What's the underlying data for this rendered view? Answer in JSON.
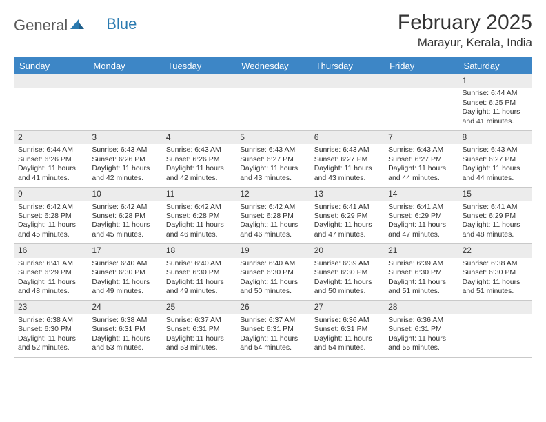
{
  "logo": {
    "word1": "General",
    "word2": "Blue"
  },
  "title": "February 2025",
  "location": "Marayur, Kerala, India",
  "colors": {
    "header_bg": "#3d86c6",
    "header_text": "#ffffff",
    "daynum_bg": "#ececec",
    "border": "#c9c9c9",
    "text": "#333333",
    "logo_gray": "#5a5a5a",
    "logo_blue": "#2a7ab0"
  },
  "day_names": [
    "Sunday",
    "Monday",
    "Tuesday",
    "Wednesday",
    "Thursday",
    "Friday",
    "Saturday"
  ],
  "weeks": [
    [
      {
        "n": "",
        "lines": []
      },
      {
        "n": "",
        "lines": []
      },
      {
        "n": "",
        "lines": []
      },
      {
        "n": "",
        "lines": []
      },
      {
        "n": "",
        "lines": []
      },
      {
        "n": "",
        "lines": []
      },
      {
        "n": "1",
        "lines": [
          "Sunrise: 6:44 AM",
          "Sunset: 6:25 PM",
          "Daylight: 11 hours and 41 minutes."
        ]
      }
    ],
    [
      {
        "n": "2",
        "lines": [
          "Sunrise: 6:44 AM",
          "Sunset: 6:26 PM",
          "Daylight: 11 hours and 41 minutes."
        ]
      },
      {
        "n": "3",
        "lines": [
          "Sunrise: 6:43 AM",
          "Sunset: 6:26 PM",
          "Daylight: 11 hours and 42 minutes."
        ]
      },
      {
        "n": "4",
        "lines": [
          "Sunrise: 6:43 AM",
          "Sunset: 6:26 PM",
          "Daylight: 11 hours and 42 minutes."
        ]
      },
      {
        "n": "5",
        "lines": [
          "Sunrise: 6:43 AM",
          "Sunset: 6:27 PM",
          "Daylight: 11 hours and 43 minutes."
        ]
      },
      {
        "n": "6",
        "lines": [
          "Sunrise: 6:43 AM",
          "Sunset: 6:27 PM",
          "Daylight: 11 hours and 43 minutes."
        ]
      },
      {
        "n": "7",
        "lines": [
          "Sunrise: 6:43 AM",
          "Sunset: 6:27 PM",
          "Daylight: 11 hours and 44 minutes."
        ]
      },
      {
        "n": "8",
        "lines": [
          "Sunrise: 6:43 AM",
          "Sunset: 6:27 PM",
          "Daylight: 11 hours and 44 minutes."
        ]
      }
    ],
    [
      {
        "n": "9",
        "lines": [
          "Sunrise: 6:42 AM",
          "Sunset: 6:28 PM",
          "Daylight: 11 hours and 45 minutes."
        ]
      },
      {
        "n": "10",
        "lines": [
          "Sunrise: 6:42 AM",
          "Sunset: 6:28 PM",
          "Daylight: 11 hours and 45 minutes."
        ]
      },
      {
        "n": "11",
        "lines": [
          "Sunrise: 6:42 AM",
          "Sunset: 6:28 PM",
          "Daylight: 11 hours and 46 minutes."
        ]
      },
      {
        "n": "12",
        "lines": [
          "Sunrise: 6:42 AM",
          "Sunset: 6:28 PM",
          "Daylight: 11 hours and 46 minutes."
        ]
      },
      {
        "n": "13",
        "lines": [
          "Sunrise: 6:41 AM",
          "Sunset: 6:29 PM",
          "Daylight: 11 hours and 47 minutes."
        ]
      },
      {
        "n": "14",
        "lines": [
          "Sunrise: 6:41 AM",
          "Sunset: 6:29 PM",
          "Daylight: 11 hours and 47 minutes."
        ]
      },
      {
        "n": "15",
        "lines": [
          "Sunrise: 6:41 AM",
          "Sunset: 6:29 PM",
          "Daylight: 11 hours and 48 minutes."
        ]
      }
    ],
    [
      {
        "n": "16",
        "lines": [
          "Sunrise: 6:41 AM",
          "Sunset: 6:29 PM",
          "Daylight: 11 hours and 48 minutes."
        ]
      },
      {
        "n": "17",
        "lines": [
          "Sunrise: 6:40 AM",
          "Sunset: 6:30 PM",
          "Daylight: 11 hours and 49 minutes."
        ]
      },
      {
        "n": "18",
        "lines": [
          "Sunrise: 6:40 AM",
          "Sunset: 6:30 PM",
          "Daylight: 11 hours and 49 minutes."
        ]
      },
      {
        "n": "19",
        "lines": [
          "Sunrise: 6:40 AM",
          "Sunset: 6:30 PM",
          "Daylight: 11 hours and 50 minutes."
        ]
      },
      {
        "n": "20",
        "lines": [
          "Sunrise: 6:39 AM",
          "Sunset: 6:30 PM",
          "Daylight: 11 hours and 50 minutes."
        ]
      },
      {
        "n": "21",
        "lines": [
          "Sunrise: 6:39 AM",
          "Sunset: 6:30 PM",
          "Daylight: 11 hours and 51 minutes."
        ]
      },
      {
        "n": "22",
        "lines": [
          "Sunrise: 6:38 AM",
          "Sunset: 6:30 PM",
          "Daylight: 11 hours and 51 minutes."
        ]
      }
    ],
    [
      {
        "n": "23",
        "lines": [
          "Sunrise: 6:38 AM",
          "Sunset: 6:30 PM",
          "Daylight: 11 hours and 52 minutes."
        ]
      },
      {
        "n": "24",
        "lines": [
          "Sunrise: 6:38 AM",
          "Sunset: 6:31 PM",
          "Daylight: 11 hours and 53 minutes."
        ]
      },
      {
        "n": "25",
        "lines": [
          "Sunrise: 6:37 AM",
          "Sunset: 6:31 PM",
          "Daylight: 11 hours and 53 minutes."
        ]
      },
      {
        "n": "26",
        "lines": [
          "Sunrise: 6:37 AM",
          "Sunset: 6:31 PM",
          "Daylight: 11 hours and 54 minutes."
        ]
      },
      {
        "n": "27",
        "lines": [
          "Sunrise: 6:36 AM",
          "Sunset: 6:31 PM",
          "Daylight: 11 hours and 54 minutes."
        ]
      },
      {
        "n": "28",
        "lines": [
          "Sunrise: 6:36 AM",
          "Sunset: 6:31 PM",
          "Daylight: 11 hours and 55 minutes."
        ]
      },
      {
        "n": "",
        "lines": []
      }
    ]
  ]
}
